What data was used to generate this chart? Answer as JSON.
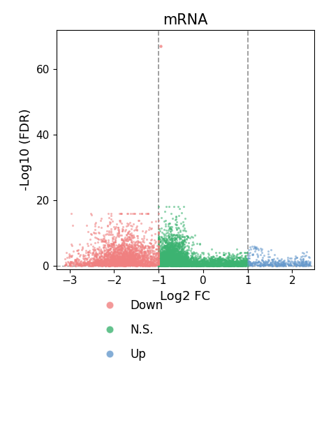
{
  "title": "mRNA",
  "xlabel": "Log2 FC",
  "ylabel": "-Log10 (FDR)",
  "xlim": [
    -3.3,
    2.5
  ],
  "ylim": [
    -1,
    72
  ],
  "xticks": [
    -3,
    -2,
    -1,
    0,
    1,
    2
  ],
  "yticks": [
    0,
    20,
    40,
    60
  ],
  "vline1": -1,
  "vline2": 1,
  "hline": 0,
  "down_color": "#F08080",
  "ns_color": "#3CB371",
  "up_color": "#6699CC",
  "legend_labels": [
    "Down",
    "N.S.",
    "Up"
  ],
  "point_size": 5,
  "alpha": 0.55,
  "seed": 42,
  "title_fontsize": 15,
  "label_fontsize": 13,
  "tick_fontsize": 11
}
